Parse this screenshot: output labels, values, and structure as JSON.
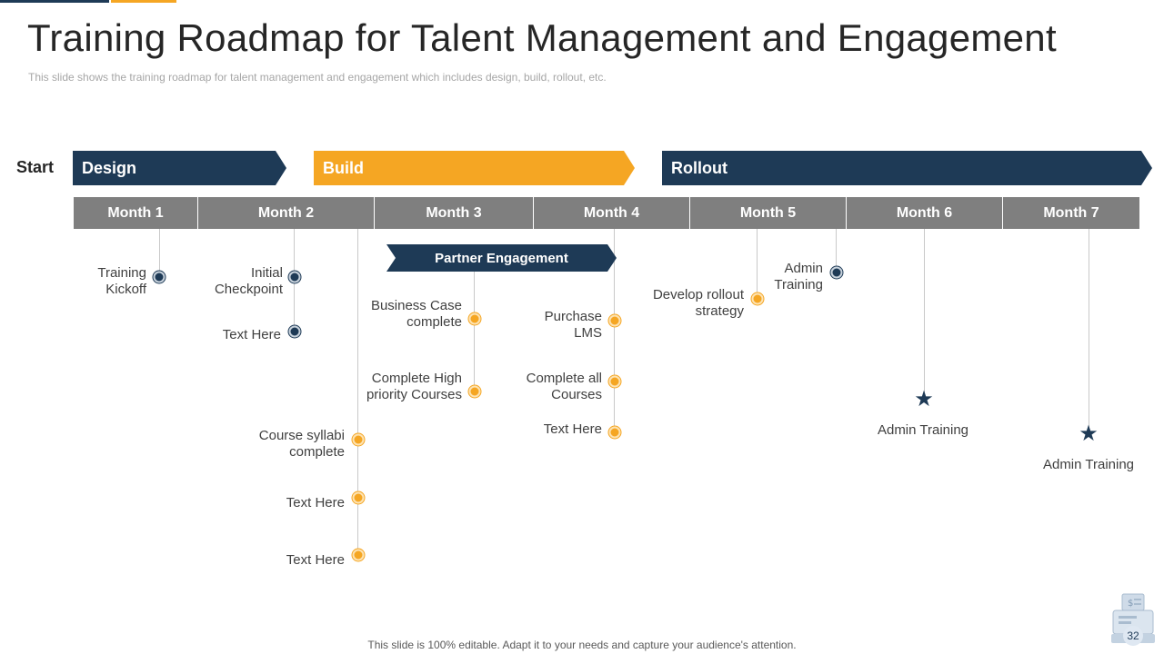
{
  "title": "Training Roadmap for Talent Management and Engagement",
  "subtitle": "This slide shows the training roadmap for talent management and engagement which includes design, build, rollout, etc.",
  "start_label": "Start",
  "phases": [
    {
      "label": "Design"
    },
    {
      "label": "Build"
    },
    {
      "label": "Rollout"
    }
  ],
  "months": [
    "Month 1",
    "Month 2",
    "Month 3",
    "Month 4",
    "Month 5",
    "Month 6",
    "Month 7"
  ],
  "partner_engagement": "Partner Engagement",
  "milestones": {
    "training_kickoff": "Training\nKickoff",
    "initial_checkpoint": "Initial\nCheckpoint",
    "text_here_m2": "Text Here",
    "course_syllabi": "Course syllabi\ncomplete",
    "text_here_m3a": "Text Here",
    "text_here_m3b": "Text Here",
    "business_case": "Business Case\ncomplete",
    "complete_high_priority": "Complete High\npriority Courses",
    "purchase_lms": "Purchase\nLMS",
    "complete_all_courses": "Complete all\nCourses",
    "text_here_m4": "Text Here",
    "develop_rollout": "Develop rollout\nstrategy",
    "admin_training_m5": "Admin\nTraining",
    "admin_training_m6": "Admin Training",
    "admin_training_m7": "Admin Training"
  },
  "colors": {
    "navy": "#1e3a56",
    "orange": "#f5a623",
    "gray": "#7f7f7f"
  },
  "footer": "This slide is 100% editable. Adapt it to your needs and capture your audience's attention.",
  "page_number": "32"
}
